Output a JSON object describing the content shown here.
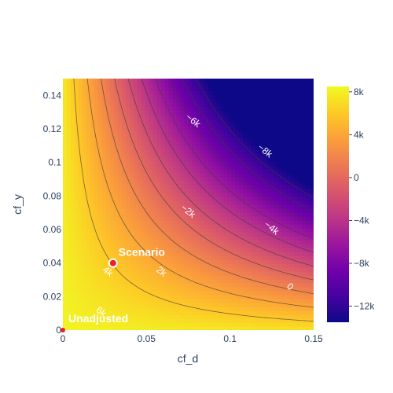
{
  "chart_data": {
    "type": "contour",
    "xlabel": "cf_d",
    "ylabel": "cf_y",
    "xlim": [
      0,
      0.15
    ],
    "ylim": [
      0,
      0.15
    ],
    "x_ticks": [
      {
        "value": 0,
        "label": "0"
      },
      {
        "value": 0.05,
        "label": "0.05"
      },
      {
        "value": 0.1,
        "label": "0.1"
      },
      {
        "value": 0.15,
        "label": "0.15"
      }
    ],
    "y_ticks": [
      {
        "value": 0,
        "label": "0"
      },
      {
        "value": 0.02,
        "label": "0.02"
      },
      {
        "value": 0.04,
        "label": "0.04"
      },
      {
        "value": 0.06,
        "label": "0.06"
      },
      {
        "value": 0.08,
        "label": "0.08"
      },
      {
        "value": 0.1,
        "label": "0.1"
      },
      {
        "value": 0.12,
        "label": "0.12"
      },
      {
        "value": 0.14,
        "label": "0.14"
      }
    ],
    "colorscale": "plasma",
    "colorbar": {
      "range": [
        -13500,
        8500
      ],
      "ticks": [
        {
          "value": 8000,
          "label": "8k"
        },
        {
          "value": 4000,
          "label": "4k"
        },
        {
          "value": 0,
          "label": "0"
        },
        {
          "value": -4000,
          "label": "−4k"
        },
        {
          "value": -8000,
          "label": "−8k"
        },
        {
          "value": -12000,
          "label": "−12k"
        }
      ]
    },
    "contour_levels": [
      -12000,
      -10000,
      -8000,
      -6000,
      -4000,
      -2000,
      0,
      2000,
      4000,
      6000
    ],
    "contour_labels": [
      {
        "text": "−6k",
        "x": 0.078,
        "y": 0.125
      },
      {
        "text": "−8k",
        "x": 0.121,
        "y": 0.107
      },
      {
        "text": "−2k",
        "x": 0.075,
        "y": 0.071
      },
      {
        "text": "−4k",
        "x": 0.125,
        "y": 0.061
      },
      {
        "text": "4k",
        "x": 0.027,
        "y": 0.035
      },
      {
        "text": "2k",
        "x": 0.059,
        "y": 0.035
      },
      {
        "text": "0",
        "x": 0.136,
        "y": 0.026
      },
      {
        "text": "6k",
        "x": 0.023,
        "y": 0.011
      }
    ],
    "points": [
      {
        "name": "Scenario",
        "x": 0.03,
        "y": 0.04
      },
      {
        "name": "Unadjusted",
        "x": 0,
        "y": 0
      }
    ]
  }
}
